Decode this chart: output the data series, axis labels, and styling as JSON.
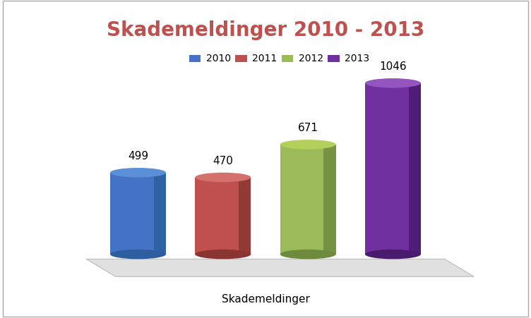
{
  "title": "Skademeldinger 2010 - 2013",
  "xlabel": "Skademeldinger",
  "years": [
    "2010",
    "2011",
    "2012",
    "2013"
  ],
  "values": [
    499,
    470,
    671,
    1046
  ],
  "colors_main": [
    "#4472C4",
    "#C0504D",
    "#9BBB59",
    "#7030A0"
  ],
  "colors_dark": [
    "#2E5EA0",
    "#8B3533",
    "#6E8B3D",
    "#4A1A6E"
  ],
  "colors_top": [
    "#5B8FD8",
    "#D4706D",
    "#B3D15A",
    "#9455BE"
  ],
  "title_color": "#C0504D",
  "background_color": "#FFFFFF",
  "legend_labels": [
    "2010",
    "2011",
    "2012",
    "2013"
  ],
  "floor_color": "#E0E0E0",
  "floor_edge_color": "#BBBBBB"
}
